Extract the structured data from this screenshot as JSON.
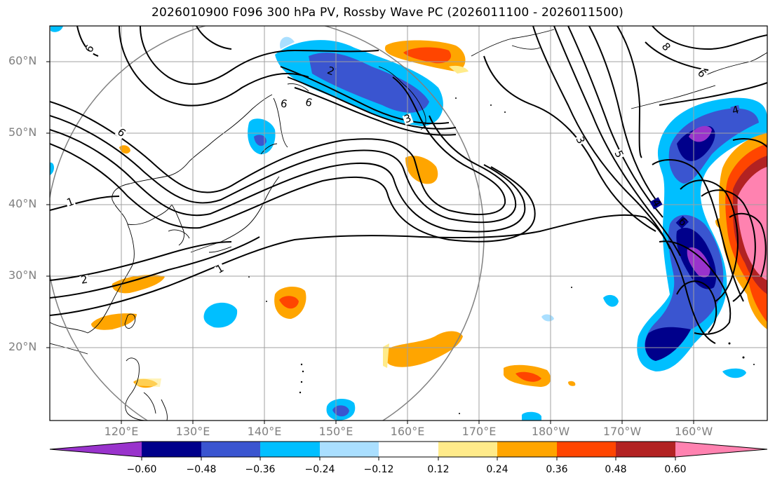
{
  "title": "2026010900 F096 300 hPa PV, Rossby Wave PC (2026011100 - 2026011500)",
  "lat_labels": [
    "60°N",
    "50°N",
    "40°N",
    "30°N",
    "20°N"
  ],
  "lon_labels": [
    "120°E",
    "130°E",
    "140°E",
    "150°E",
    "160°E",
    "170°E",
    "180°W",
    "170°W",
    "160°W"
  ],
  "contour_labels": [
    "6",
    "2",
    "6",
    "6",
    "3",
    "3",
    "5",
    "4",
    "4",
    "6",
    "1",
    "2",
    "1",
    "6",
    "6",
    "8"
  ],
  "colorbar": {
    "ticks": [
      "−0.60",
      "−0.48",
      "−0.36",
      "−0.24",
      "−0.12",
      "0.12",
      "0.24",
      "0.36",
      "0.48",
      "0.60"
    ],
    "colors": [
      "#9933cc",
      "#00008b",
      "#3a55d0",
      "#00bfff",
      "#aadfff",
      "#ffffff",
      "#ffeb8a",
      "#ffa500",
      "#ff4500",
      "#b22222",
      "#ff82b0"
    ]
  },
  "legend_colors": {
    "neg_extreme": "#9933cc",
    "neg_060": "#00008b",
    "neg_048": "#3a55d0",
    "neg_036": "#00bfff",
    "neg_024": "#aadfff",
    "pos_024": "#ffa500",
    "pos_036": "#ff4500",
    "pos_048": "#b22222",
    "pos_extreme": "#ff82b0",
    "pos_012": "#ffeb8a"
  }
}
